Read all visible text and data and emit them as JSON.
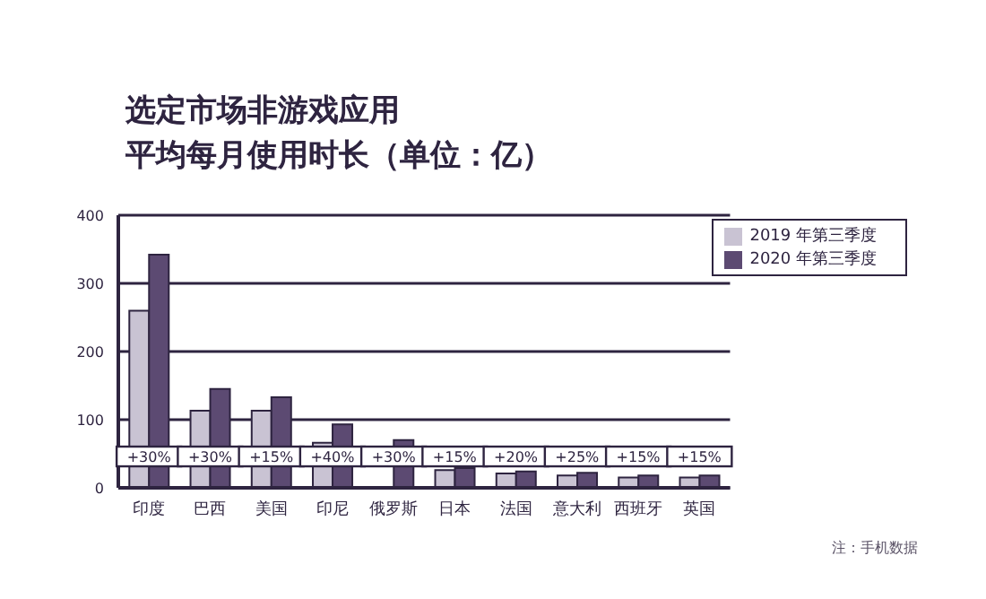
{
  "chart_data": {
    "type": "bar",
    "title": "选定市场非游戏应用",
    "subtitle": "平均每月使用时长（单位：亿）",
    "categories": [
      "印度",
      "巴西",
      "美国",
      "印尼",
      "俄罗斯",
      "日本",
      "法国",
      "意大利",
      "西班牙",
      "英国"
    ],
    "series": [
      {
        "name": "2019 年第三季度",
        "color": "#c9c3d3",
        "values": [
          260,
          113,
          113,
          66,
          null,
          26,
          21,
          18,
          15,
          15
        ]
      },
      {
        "name": "2020 年第三季度",
        "color": "#5c4a72",
        "values": [
          342,
          145,
          133,
          93,
          70,
          29,
          24,
          22,
          18,
          18
        ]
      }
    ],
    "ylim": [
      0,
      400
    ],
    "yticks": [
      0,
      100,
      200,
      300,
      400
    ],
    "grid": "y",
    "legend": "top right",
    "annotations": [
      {
        "text": "+30%",
        "x": "印度",
        "y": 46
      },
      {
        "text": "+30%",
        "x": "巴西",
        "y": 46
      },
      {
        "text": "+15%",
        "x": "美国",
        "y": 46
      },
      {
        "text": "+40%",
        "x": "印尼",
        "y": 46
      },
      {
        "text": "+30%",
        "x": "俄罗斯",
        "y": 46
      },
      {
        "text": "+15%",
        "x": "日本",
        "y": 46
      },
      {
        "text": "+20%",
        "x": "法国",
        "y": 46
      },
      {
        "text": "+25%",
        "x": "意大利",
        "y": 46
      },
      {
        "text": "+15%",
        "x": "西班牙",
        "y": 46
      },
      {
        "text": "+15%",
        "x": "英国",
        "y": 46
      },
      "注：手机数据"
    ]
  }
}
